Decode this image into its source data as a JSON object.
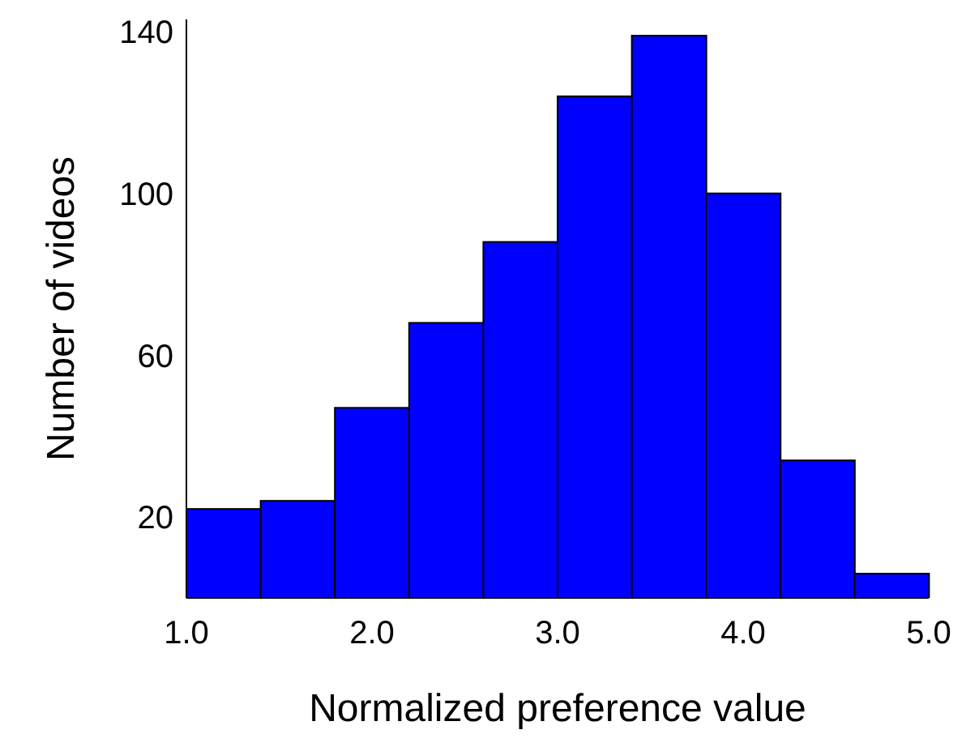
{
  "chart_data": {
    "type": "histogram",
    "xlabel": "Normalized preference value",
    "ylabel": "Number of videos",
    "bins": [
      1.0,
      1.4,
      1.8,
      2.2,
      2.6,
      3.0,
      3.4,
      3.8,
      4.2,
      4.6,
      5.0
    ],
    "values": [
      22,
      24,
      47,
      68,
      88,
      124,
      139,
      100,
      34,
      6
    ],
    "color": "#0000ff",
    "xlim": [
      1.0,
      5.0
    ],
    "xticks": [
      {
        "value": 1,
        "label": "1.0"
      },
      {
        "value": 2,
        "label": "2.0"
      },
      {
        "value": 3,
        "label": "3.0"
      },
      {
        "value": 4,
        "label": "4.0"
      },
      {
        "value": 5,
        "label": "5.0"
      }
    ],
    "ylim": [
      0,
      143
    ],
    "yticks": [
      20,
      60,
      100,
      140
    ],
    "grid": false
  }
}
